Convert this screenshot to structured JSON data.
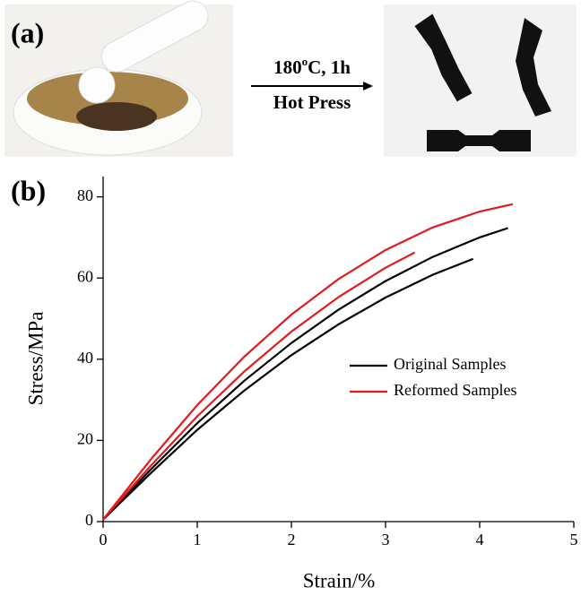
{
  "panel_a": {
    "label": "(a)",
    "condition": [
      "180",
      "o",
      "C, 1h"
    ],
    "process": "Hot Press"
  },
  "panel_b": {
    "label": "(b)"
  },
  "chart_data": {
    "type": "line",
    "x_label": "Strain/%",
    "y_label": "Stress/MPa",
    "xlim": [
      0,
      5
    ],
    "xticks": [
      0,
      1,
      2,
      3,
      4,
      5
    ],
    "ylim": [
      0,
      85
    ],
    "yticks": [
      0,
      20,
      40,
      60,
      80
    ],
    "legend": "center right",
    "series": [
      {
        "name": "Original Samples",
        "color": "#000000",
        "x": [
          0,
          0.5,
          1,
          1.5,
          2,
          2.5,
          3,
          3.5,
          4,
          4.3
        ],
        "values": [
          0.5,
          12.7,
          24.25,
          34.7,
          44,
          52.2,
          59.25,
          65.2,
          70,
          72.3
        ]
      },
      {
        "color": "#000000",
        "x": [
          0,
          0.5,
          1,
          1.5,
          2,
          2.5,
          3,
          3.5,
          3.93
        ],
        "values": [
          0.5,
          11.8,
          22.6,
          32.3,
          41,
          48.6,
          55.2,
          60.8,
          64.7
        ]
      },
      {
        "name": "Reformed Samples",
        "color": "#e3191c",
        "x": [
          0,
          0.5,
          1,
          1.5,
          2,
          2.5,
          3,
          3.5,
          4,
          4.35
        ],
        "values": [
          0.5,
          15.15,
          28.7,
          40.65,
          51,
          59.75,
          66.9,
          72.45,
          76.4,
          78.2
        ]
      },
      {
        "color": "#e3191c",
        "x": [
          0,
          0.5,
          1,
          1.5,
          2,
          2.5,
          3,
          3.31
        ],
        "values": [
          0.5,
          13.6,
          25.95,
          37,
          46.8,
          55.3,
          62.55,
          66.3
        ]
      }
    ]
  }
}
